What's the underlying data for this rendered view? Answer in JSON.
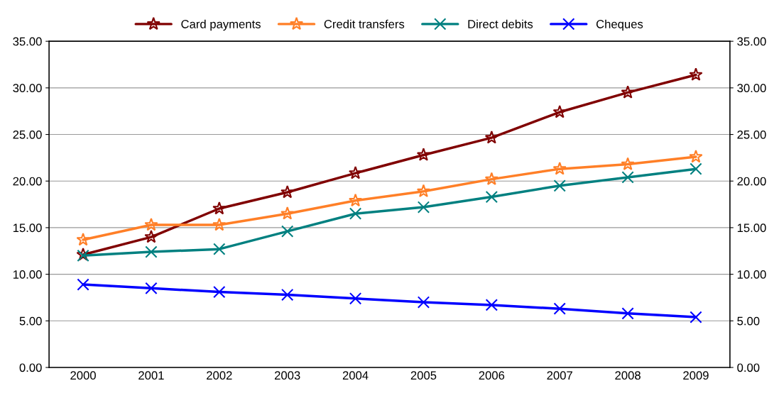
{
  "chart_data": {
    "type": "line",
    "categories": [
      "2000",
      "2001",
      "2002",
      "2003",
      "2004",
      "2005",
      "2006",
      "2007",
      "2008",
      "2009"
    ],
    "series": [
      {
        "name": "Card payments",
        "color": "#800000",
        "marker": "star",
        "values": [
          12.1,
          14.0,
          17.05,
          18.8,
          20.85,
          22.8,
          24.65,
          27.4,
          29.5,
          31.4
        ]
      },
      {
        "name": "Credit transfers",
        "color": "#ff7f27",
        "marker": "star",
        "values": [
          13.7,
          15.3,
          15.3,
          16.5,
          17.9,
          18.9,
          20.2,
          21.3,
          21.8,
          22.6
        ]
      },
      {
        "name": "Direct debits",
        "color": "#008080",
        "marker": "cross",
        "values": [
          12.0,
          12.4,
          12.7,
          14.6,
          16.5,
          17.2,
          18.3,
          19.5,
          20.4,
          21.3
        ]
      },
      {
        "name": "Cheques",
        "color": "#0000ff",
        "marker": "cross",
        "values": [
          8.9,
          8.5,
          8.1,
          7.8,
          7.4,
          7.0,
          6.7,
          6.3,
          5.8,
          5.4
        ]
      }
    ],
    "ylim": [
      0,
      35
    ],
    "yticks": [
      {
        "value": 0,
        "label": "0.00"
      },
      {
        "value": 5,
        "label": "5.00"
      },
      {
        "value": 10,
        "label": "10.00"
      },
      {
        "value": 15,
        "label": "15.00"
      },
      {
        "value": 20,
        "label": "20.00"
      },
      {
        "value": 25,
        "label": "25.00"
      },
      {
        "value": 30,
        "label": "30.00"
      },
      {
        "value": 35,
        "label": "35.00"
      }
    ],
    "y2lim": [
      0,
      35
    ],
    "y2ticks": [
      {
        "value": 0,
        "label": "0.00"
      },
      {
        "value": 5,
        "label": "5.00"
      },
      {
        "value": 10,
        "label": "10.00"
      },
      {
        "value": 15,
        "label": "15.00"
      },
      {
        "value": 20,
        "label": "20.00"
      },
      {
        "value": 25,
        "label": "25.00"
      },
      {
        "value": 30,
        "label": "30.00"
      },
      {
        "value": 35,
        "label": "35.00"
      }
    ],
    "grid": "y",
    "legend": "top",
    "line_style": "solid"
  }
}
